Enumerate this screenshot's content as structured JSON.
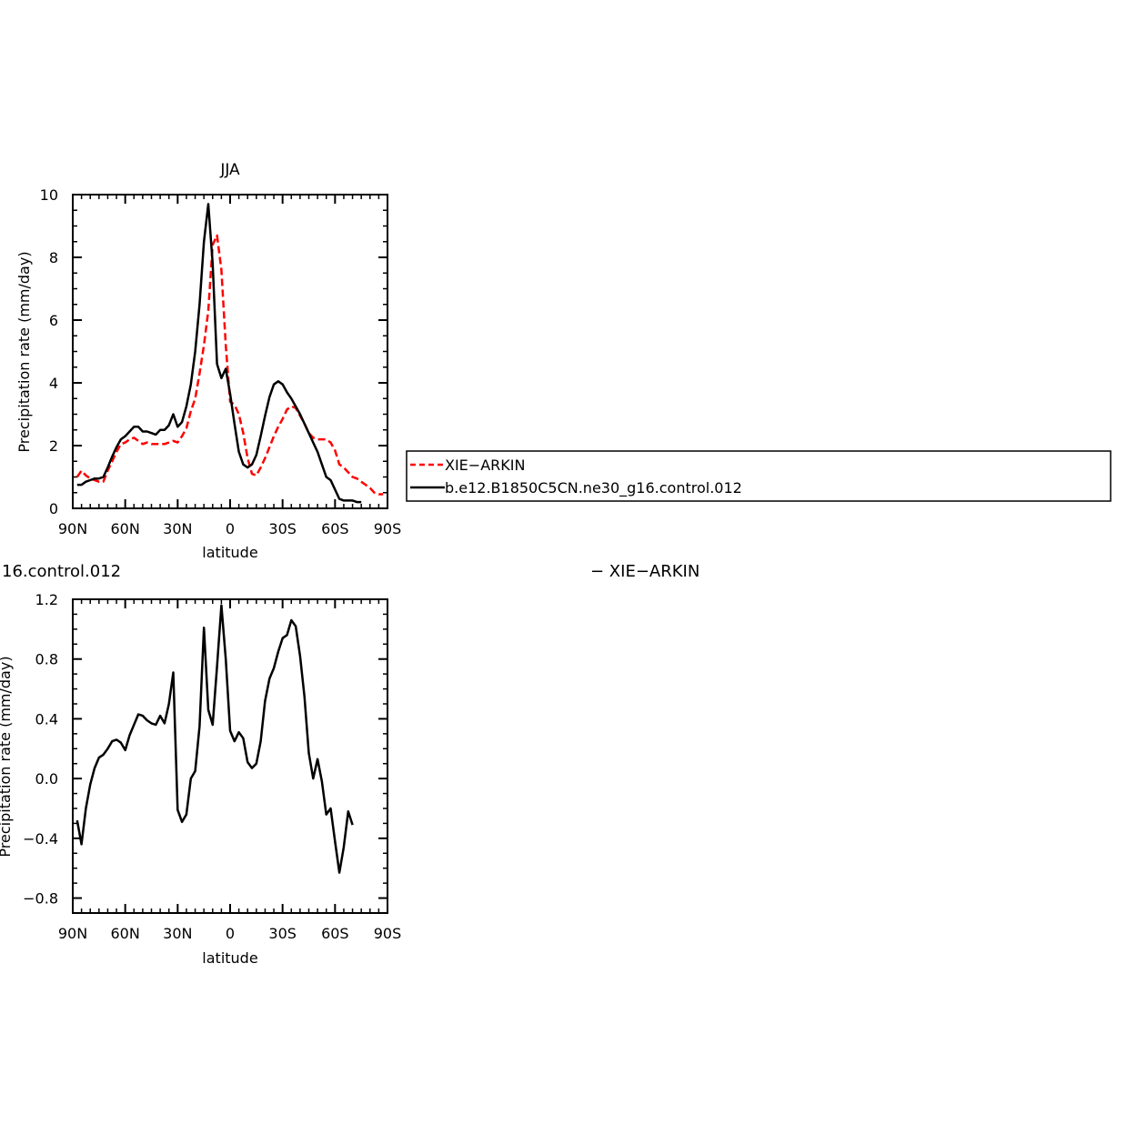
{
  "chart_data": [
    {
      "type": "line",
      "title": "JJA",
      "xlabel": "latitude",
      "ylabel": "Precipitation rate (mm/day)",
      "xlim": [
        90,
        -90
      ],
      "ylim": [
        0,
        10
      ],
      "xticks": [
        {
          "value": 90,
          "label": "90N"
        },
        {
          "value": 60,
          "label": "60N"
        },
        {
          "value": 30,
          "label": "30N"
        },
        {
          "value": 0,
          "label": "0"
        },
        {
          "value": -30,
          "label": "30S"
        },
        {
          "value": -60,
          "label": "60S"
        },
        {
          "value": -90,
          "label": "90S"
        }
      ],
      "yticks": [
        {
          "value": 0,
          "label": "0"
        },
        {
          "value": 2,
          "label": "2"
        },
        {
          "value": 4,
          "label": "4"
        },
        {
          "value": 6,
          "label": "6"
        },
        {
          "value": 8,
          "label": "8"
        },
        {
          "value": 10,
          "label": "10"
        }
      ],
      "legend_position": "right",
      "series": [
        {
          "name": "XIE−ARKIN",
          "color": "#ff0000",
          "dashed": true,
          "points": [
            [
              87.5,
              1.0
            ],
            [
              85,
              1.2
            ],
            [
              82.5,
              1.05
            ],
            [
              80,
              0.95
            ],
            [
              77.5,
              0.9
            ],
            [
              75,
              0.85
            ],
            [
              72.5,
              0.85
            ],
            [
              70,
              1.2
            ],
            [
              67.5,
              1.5
            ],
            [
              65,
              1.8
            ],
            [
              62.5,
              2.05
            ],
            [
              60,
              2.1
            ],
            [
              57.5,
              2.2
            ],
            [
              55,
              2.25
            ],
            [
              52.5,
              2.15
            ],
            [
              50,
              2.05
            ],
            [
              47.5,
              2.1
            ],
            [
              45,
              2.05
            ],
            [
              42.5,
              2.05
            ],
            [
              40,
              2.05
            ],
            [
              37.5,
              2.05
            ],
            [
              35,
              2.1
            ],
            [
              32.5,
              2.15
            ],
            [
              30,
              2.1
            ],
            [
              27.5,
              2.3
            ],
            [
              25,
              2.55
            ],
            [
              22.5,
              3.1
            ],
            [
              20,
              3.5
            ],
            [
              17.5,
              4.3
            ],
            [
              15,
              5.2
            ],
            [
              12.5,
              6.3
            ],
            [
              10,
              8.4
            ],
            [
              7.5,
              8.7
            ],
            [
              5,
              7.6
            ],
            [
              2.5,
              5.2
            ],
            [
              0,
              3.4
            ],
            [
              -2.5,
              3.3
            ],
            [
              -5,
              3.0
            ],
            [
              -7.5,
              2.4
            ],
            [
              -10,
              1.6
            ],
            [
              -12.5,
              1.1
            ],
            [
              -15,
              1.05
            ],
            [
              -17.5,
              1.3
            ],
            [
              -20,
              1.6
            ],
            [
              -22.5,
              1.95
            ],
            [
              -25,
              2.3
            ],
            [
              -27.5,
              2.6
            ],
            [
              -30,
              2.85
            ],
            [
              -32.5,
              3.15
            ],
            [
              -35,
              3.25
            ],
            [
              -37.5,
              3.2
            ],
            [
              -40,
              2.95
            ],
            [
              -42.5,
              2.7
            ],
            [
              -45,
              2.4
            ],
            [
              -47.5,
              2.25
            ],
            [
              -50,
              2.2
            ],
            [
              -52.5,
              2.2
            ],
            [
              -55,
              2.2
            ],
            [
              -57.5,
              2.1
            ],
            [
              -60,
              1.85
            ],
            [
              -62.5,
              1.4
            ],
            [
              -65,
              1.3
            ],
            [
              -67.5,
              1.15
            ],
            [
              -70,
              1.0
            ],
            [
              -72.5,
              0.95
            ],
            [
              -75,
              0.85
            ],
            [
              -77.5,
              0.75
            ],
            [
              -80,
              0.65
            ],
            [
              -82.5,
              0.5
            ],
            [
              -85,
              0.45
            ],
            [
              -87.5,
              0.45
            ]
          ]
        },
        {
          "name": "b.e12.B1850C5CN.ne30_g16.control.012",
          "color": "#000000",
          "dashed": false,
          "points": [
            [
              87.5,
              0.75
            ],
            [
              85,
              0.75
            ],
            [
              82.5,
              0.85
            ],
            [
              80,
              0.9
            ],
            [
              77.5,
              0.95
            ],
            [
              75,
              0.95
            ],
            [
              72.5,
              1.0
            ],
            [
              70,
              1.3
            ],
            [
              67.5,
              1.65
            ],
            [
              65,
              1.95
            ],
            [
              62.5,
              2.2
            ],
            [
              60,
              2.3
            ],
            [
              57.5,
              2.45
            ],
            [
              55,
              2.6
            ],
            [
              52.5,
              2.6
            ],
            [
              50,
              2.45
            ],
            [
              47.5,
              2.45
            ],
            [
              45,
              2.4
            ],
            [
              42.5,
              2.35
            ],
            [
              40,
              2.5
            ],
            [
              37.5,
              2.5
            ],
            [
              35,
              2.65
            ],
            [
              32.5,
              3.0
            ],
            [
              30,
              2.6
            ],
            [
              27.5,
              2.75
            ],
            [
              25,
              3.25
            ],
            [
              22.5,
              3.95
            ],
            [
              20,
              5.0
            ],
            [
              17.5,
              6.5
            ],
            [
              15,
              8.5
            ],
            [
              12.5,
              9.7
            ],
            [
              10,
              7.8
            ],
            [
              7.5,
              4.6
            ],
            [
              5,
              4.15
            ],
            [
              2.5,
              4.45
            ],
            [
              0,
              3.65
            ],
            [
              -2.5,
              2.7
            ],
            [
              -5,
              1.8
            ],
            [
              -7.5,
              1.4
            ],
            [
              -10,
              1.3
            ],
            [
              -12.5,
              1.4
            ],
            [
              -15,
              1.7
            ],
            [
              -17.5,
              2.3
            ],
            [
              -20,
              2.95
            ],
            [
              -22.5,
              3.55
            ],
            [
              -25,
              3.95
            ],
            [
              -27.5,
              4.05
            ],
            [
              -30,
              3.95
            ],
            [
              -32.5,
              3.7
            ],
            [
              -35,
              3.5
            ],
            [
              -37.5,
              3.25
            ],
            [
              -40,
              3.0
            ],
            [
              -42.5,
              2.7
            ],
            [
              -45,
              2.4
            ],
            [
              -47.5,
              2.1
            ],
            [
              -50,
              1.8
            ],
            [
              -52.5,
              1.4
            ],
            [
              -55,
              1.0
            ],
            [
              -57.5,
              0.9
            ],
            [
              -60,
              0.6
            ],
            [
              -62.5,
              0.3
            ],
            [
              -65,
              0.25
            ],
            [
              -67.5,
              0.25
            ],
            [
              -70,
              0.25
            ],
            [
              -72.5,
              0.2
            ],
            [
              -75,
              0.2
            ]
          ]
        }
      ]
    },
    {
      "type": "line",
      "title": "16.control.012",
      "title_right": "− XIE−ARKIN",
      "xlabel": "latitude",
      "ylabel": "Precipitation rate (mm/day)",
      "xlim": [
        90,
        -90
      ],
      "ylim": [
        -0.9,
        1.2
      ],
      "xticks": [
        {
          "value": 90,
          "label": "90N"
        },
        {
          "value": 60,
          "label": "60N"
        },
        {
          "value": 30,
          "label": "30N"
        },
        {
          "value": 0,
          "label": "0"
        },
        {
          "value": -30,
          "label": "30S"
        },
        {
          "value": -60,
          "label": "60S"
        },
        {
          "value": -90,
          "label": "90S"
        }
      ],
      "yticks": [
        {
          "value": -0.8,
          "label": "−0.8"
        },
        {
          "value": -0.4,
          "label": "−0.4"
        },
        {
          "value": 0.0,
          "label": "0.0"
        },
        {
          "value": 0.4,
          "label": "0.4"
        },
        {
          "value": 0.8,
          "label": "0.8"
        },
        {
          "value": 1.2,
          "label": "1.2"
        }
      ],
      "series": [
        {
          "color": "#000000",
          "dashed": false,
          "points": [
            [
              87.5,
              -0.28
            ],
            [
              85,
              -0.44
            ],
            [
              82.5,
              -0.2
            ],
            [
              80,
              -0.04
            ],
            [
              77.5,
              0.07
            ],
            [
              75,
              0.14
            ],
            [
              72.5,
              0.16
            ],
            [
              70,
              0.2
            ],
            [
              67.5,
              0.25
            ],
            [
              65,
              0.26
            ],
            [
              62.5,
              0.24
            ],
            [
              60,
              0.19
            ],
            [
              57.5,
              0.29
            ],
            [
              55,
              0.36
            ],
            [
              52.5,
              0.43
            ],
            [
              50,
              0.42
            ],
            [
              47.5,
              0.39
            ],
            [
              45,
              0.37
            ],
            [
              42.5,
              0.36
            ],
            [
              40,
              0.42
            ],
            [
              37.5,
              0.37
            ],
            [
              35,
              0.5
            ],
            [
              32.5,
              0.71
            ],
            [
              30,
              -0.21
            ],
            [
              27.5,
              -0.29
            ],
            [
              25,
              -0.24
            ],
            [
              22.5,
              0.0
            ],
            [
              20,
              0.05
            ],
            [
              17.5,
              0.35
            ],
            [
              15,
              1.01
            ],
            [
              12.5,
              0.46
            ],
            [
              10,
              0.36
            ],
            [
              7.5,
              0.75
            ],
            [
              5,
              1.16
            ],
            [
              2.5,
              0.8
            ],
            [
              0,
              0.32
            ],
            [
              -2.5,
              0.25
            ],
            [
              -5,
              0.31
            ],
            [
              -7.5,
              0.27
            ],
            [
              -10,
              0.11
            ],
            [
              -12.5,
              0.07
            ],
            [
              -15,
              0.1
            ],
            [
              -17.5,
              0.25
            ],
            [
              -20,
              0.52
            ],
            [
              -22.5,
              0.67
            ],
            [
              -25,
              0.74
            ],
            [
              -27.5,
              0.85
            ],
            [
              -30,
              0.94
            ],
            [
              -32.5,
              0.96
            ],
            [
              -35,
              1.06
            ],
            [
              -37.5,
              1.02
            ],
            [
              -40,
              0.82
            ],
            [
              -42.5,
              0.55
            ],
            [
              -45,
              0.17
            ],
            [
              -47.5,
              0.0
            ],
            [
              -50,
              0.13
            ],
            [
              -52.5,
              -0.02
            ],
            [
              -55,
              -0.24
            ],
            [
              -57.5,
              -0.2
            ],
            [
              -60,
              -0.42
            ],
            [
              -62.5,
              -0.63
            ],
            [
              -65,
              -0.46
            ],
            [
              -67.5,
              -0.22
            ],
            [
              -70,
              -0.31
            ]
          ]
        }
      ]
    }
  ]
}
